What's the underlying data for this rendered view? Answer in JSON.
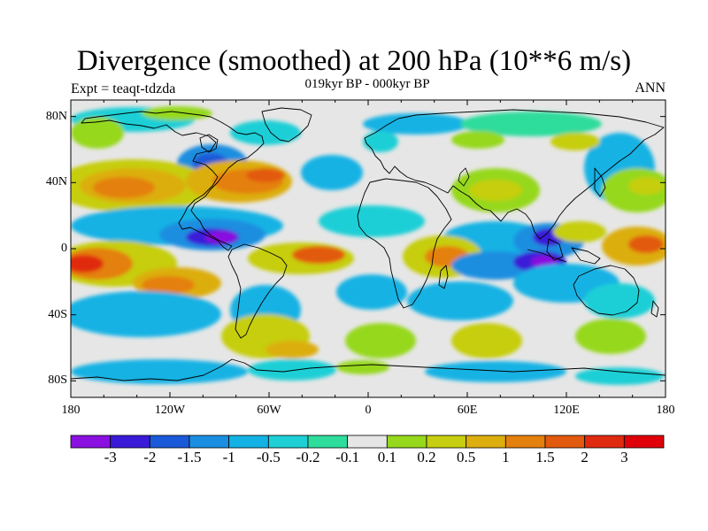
{
  "figure": {
    "title": "Divergence (smoothed) at 200 hPa (10**6 m/s)",
    "subtitle": "019kyr BP - 000kyr BP",
    "experiment_label": "Expt = teaqt-tdzda",
    "season_label": "ANN"
  },
  "axes": {
    "lat_ticks": [
      "80N",
      "40N",
      "0",
      "40S",
      "80S"
    ],
    "lat_values": [
      80,
      40,
      0,
      -40,
      -80
    ],
    "lon_ticks": [
      "180",
      "120W",
      "60W",
      "0",
      "60E",
      "120E",
      "180"
    ],
    "lon_values": [
      -180,
      -120,
      -60,
      0,
      60,
      120,
      180
    ],
    "lat_range": [
      -90,
      90
    ],
    "lon_range": [
      -180,
      180
    ]
  },
  "colorbar": {
    "labels": [
      "-3",
      "-2",
      "-1.5",
      "-1",
      "-0.5",
      "-0.2",
      "-0.1",
      "0.1",
      "0.2",
      "0.5",
      "1",
      "1.5",
      "2",
      "3"
    ],
    "colors": [
      "#8a10e0",
      "#3a1ad8",
      "#1a5ad8",
      "#1a8ee0",
      "#14b2e4",
      "#1ecfd6",
      "#2edc9c",
      "#e6e6e6",
      "#96d81c",
      "#c6ce10",
      "#dcae0e",
      "#e4800e",
      "#e25a0e",
      "#e02a10",
      "#e0000a"
    ]
  },
  "colors": {
    "background": "#e6e6e6",
    "coast": "#000000"
  }
}
